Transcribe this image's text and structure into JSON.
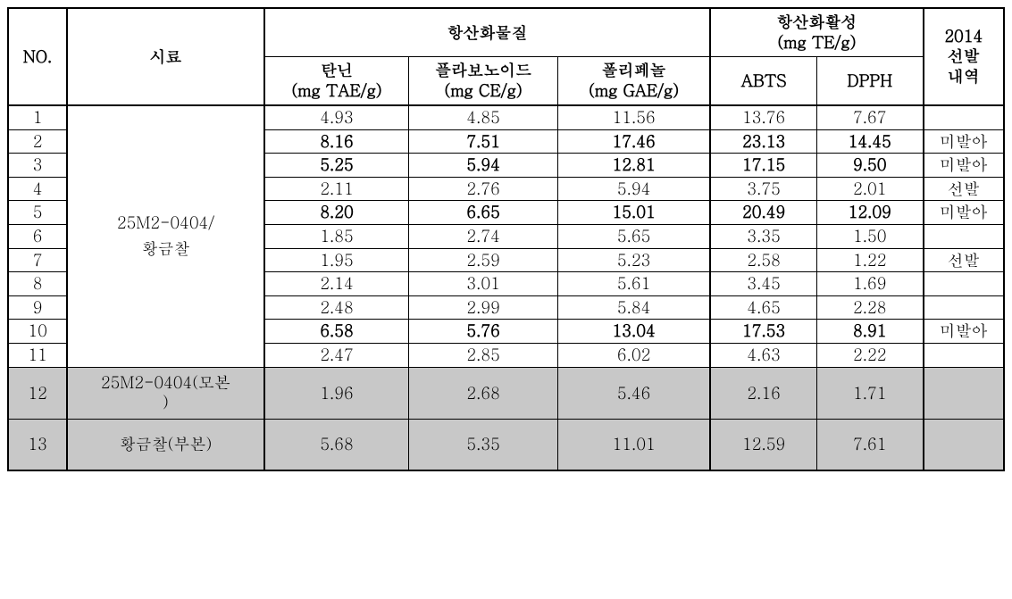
{
  "header": {
    "no": "NO.",
    "siryo": "시료",
    "antiox_subst": "항산화물질",
    "antiox_act_top": "항산화활성",
    "antiox_act_bot": "(mg TE/g)",
    "tannin_top": "탄닌",
    "tannin_bot": "(mg TAE/g)",
    "flav_top": "플라보노이드",
    "flav_bot": "(mg CE/g)",
    "poly_top": "폴리페놀",
    "poly_bot": "(mg GAE/g)",
    "abts": "ABTS",
    "dpph": "DPPH",
    "y2014_a": "2014",
    "y2014_b": "선발",
    "y2014_c": "내역"
  },
  "group_siryo_top": "25M2-0404/",
  "group_siryo_bot": "황금찰",
  "rows": [
    {
      "no": "1",
      "tan": "4.93",
      "flv": "4.85",
      "pol": "11.56",
      "abts": "13.76",
      "dpph": "7.67",
      "sel": "",
      "bold": false
    },
    {
      "no": "2",
      "tan": "8.16",
      "flv": "7.51",
      "pol": "17.46",
      "abts": "23.13",
      "dpph": "14.45",
      "sel": "미발아",
      "bold": true
    },
    {
      "no": "3",
      "tan": "5.25",
      "flv": "5.94",
      "pol": "12.81",
      "abts": "17.15",
      "dpph": "9.50",
      "sel": "미발아",
      "bold": true
    },
    {
      "no": "4",
      "tan": "2.11",
      "flv": "2.76",
      "pol": "5.94",
      "abts": "3.75",
      "dpph": "2.01",
      "sel": "선발",
      "bold": false
    },
    {
      "no": "5",
      "tan": "8.20",
      "flv": "6.65",
      "pol": "15.01",
      "abts": "20.49",
      "dpph": "12.09",
      "sel": "미발아",
      "bold": true
    },
    {
      "no": "6",
      "tan": "1.85",
      "flv": "2.74",
      "pol": "5.65",
      "abts": "3.35",
      "dpph": "1.50",
      "sel": "",
      "bold": false
    },
    {
      "no": "7",
      "tan": "1.95",
      "flv": "2.59",
      "pol": "5.23",
      "abts": "2.58",
      "dpph": "1.22",
      "sel": "선발",
      "bold": false
    },
    {
      "no": "8",
      "tan": "2.14",
      "flv": "3.01",
      "pol": "5.61",
      "abts": "3.45",
      "dpph": "1.69",
      "sel": "",
      "bold": false
    },
    {
      "no": "9",
      "tan": "2.48",
      "flv": "2.99",
      "pol": "5.84",
      "abts": "4.65",
      "dpph": "2.28",
      "sel": "",
      "bold": false
    },
    {
      "no": "10",
      "tan": "6.58",
      "flv": "5.76",
      "pol": "13.04",
      "abts": "17.53",
      "dpph": "8.91",
      "sel": "미발아",
      "bold": true
    },
    {
      "no": "11",
      "tan": "2.47",
      "flv": "2.85",
      "pol": "6.02",
      "abts": "4.63",
      "dpph": "2.22",
      "sel": "",
      "bold": false
    }
  ],
  "footer_rows": [
    {
      "no": "12",
      "siryo_top": "25M2-0404(모본",
      "siryo_bot": ")",
      "tan": "1.96",
      "flv": "2.68",
      "pol": "5.46",
      "abts": "2.16",
      "dpph": "1.71",
      "sel": ""
    },
    {
      "no": "13",
      "siryo": "황금찰(부본)",
      "tan": "5.68",
      "flv": "5.35",
      "pol": "11.01",
      "abts": "12.59",
      "dpph": "7.61",
      "sel": ""
    }
  ]
}
